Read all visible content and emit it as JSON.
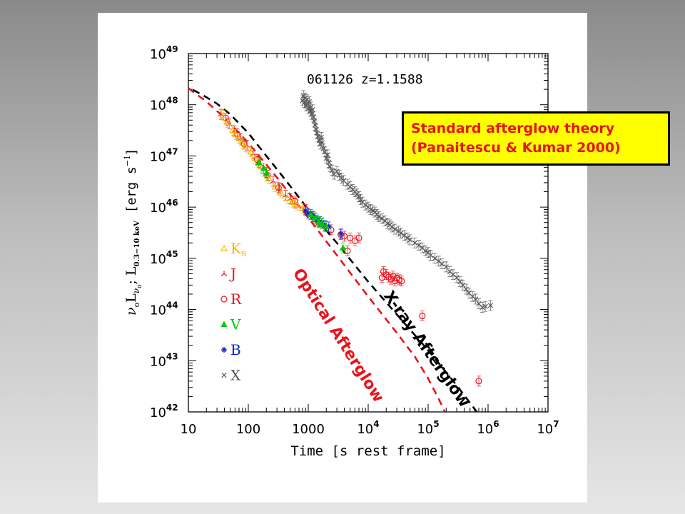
{
  "chart_data": {
    "type": "scatter",
    "title": "061126   z=1.1588",
    "xlabel": "Time [s rest frame]",
    "ylabel_parts": [
      "ν",
      "o",
      "L",
      "ν",
      "o",
      "; ",
      "L",
      "0.3−10 keV",
      "[erg s",
      "−1",
      "]"
    ],
    "x_scale": "log",
    "y_scale": "log",
    "xlim": [
      10,
      10000000
    ],
    "ylim": [
      1e+42,
      1e+49
    ],
    "x_ticks": [
      {
        "value": 10,
        "base": "10",
        "exp": ""
      },
      {
        "value": 100,
        "base": "100",
        "exp": ""
      },
      {
        "value": 1000,
        "base": "1000",
        "exp": ""
      },
      {
        "value": 10000,
        "base": "10",
        "exp": "4"
      },
      {
        "value": 100000,
        "base": "10",
        "exp": "5"
      },
      {
        "value": 1000000,
        "base": "10",
        "exp": "6"
      },
      {
        "value": 10000000,
        "base": "10",
        "exp": "7"
      }
    ],
    "y_ticks": [
      {
        "value": 1e+42,
        "base": "10",
        "exp": "42"
      },
      {
        "value": 1e+43,
        "base": "10",
        "exp": "43"
      },
      {
        "value": 1e+44,
        "base": "10",
        "exp": "44"
      },
      {
        "value": 1e+45,
        "base": "10",
        "exp": "45"
      },
      {
        "value": 1e+46,
        "base": "10",
        "exp": "46"
      },
      {
        "value": 1e+47,
        "base": "10",
        "exp": "47"
      },
      {
        "value": 1e+48,
        "base": "10",
        "exp": "48"
      },
      {
        "value": 1e+49,
        "base": "10",
        "exp": "49"
      }
    ],
    "legend_position": "lower-left",
    "series": [
      {
        "name": "Ks",
        "sub": "s",
        "main": "K",
        "marker": "triangle-open",
        "color": "#f0b400",
        "points": [
          [
            38,
            6.2e+47
          ],
          [
            45,
            4.5e+47
          ],
          [
            55,
            3.2e+47
          ],
          [
            62,
            2.6e+47
          ],
          [
            70,
            2.2e+47
          ],
          [
            80,
            1.8e+47
          ],
          [
            90,
            1.5e+47
          ],
          [
            110,
            1.2e+47
          ],
          [
            130,
            9e+46
          ],
          [
            150,
            7e+46
          ],
          [
            180,
            5e+46
          ],
          [
            220,
            3.6e+46
          ],
          [
            280,
            2.5e+46
          ],
          [
            350,
            1.9e+46
          ],
          [
            450,
            1.5e+46
          ],
          [
            550,
            1.25e+46
          ],
          [
            650,
            1.1e+46
          ],
          [
            800,
            9.5e+45
          ]
        ]
      },
      {
        "name": "J",
        "main": "J",
        "marker": "tri-open",
        "color": "#e8141c",
        "points": [
          [
            35,
            6.5e+47
          ],
          [
            48,
            4.2e+47
          ],
          [
            58,
            3.1e+47
          ],
          [
            75,
            2.2e+47
          ],
          [
            95,
            1.6e+47
          ],
          [
            120,
            1.1e+47
          ],
          [
            160,
            7e+46
          ],
          [
            200,
            4.8e+46
          ],
          [
            260,
            3.2e+46
          ],
          [
            330,
            2.3e+46
          ],
          [
            420,
            1.7e+46
          ],
          [
            500,
            1.45e+46
          ],
          [
            600,
            1.2e+46
          ]
        ]
      },
      {
        "name": "R",
        "main": "R",
        "marker": "circle-open",
        "color": "#e8141c",
        "points": [
          [
            42,
            5.5e+47
          ],
          [
            65,
            2.7e+47
          ],
          [
            85,
            1.7e+47
          ],
          [
            140,
            8.5e+46
          ],
          [
            210,
            4.2e+46
          ],
          [
            320,
            2.4e+46
          ],
          [
            600,
            1.3e+46
          ],
          [
            900,
            9e+45
          ],
          [
            1200,
            6.5e+45
          ],
          [
            1500,
            5e+45
          ],
          [
            1900,
            4.2e+45
          ],
          [
            2400,
            3.6e+45
          ],
          [
            3500,
            2.9e+45
          ],
          [
            4000,
            2.7e+45
          ],
          [
            5000,
            2.5e+45
          ],
          [
            6000,
            2.2e+45
          ],
          [
            7000,
            2.5e+45
          ],
          [
            4500,
            1.4e+45
          ],
          [
            18000,
            5.5e+44
          ],
          [
            20000,
            4.8e+44
          ],
          [
            22000,
            4.3e+44
          ],
          [
            24000,
            3.9e+44
          ],
          [
            26000,
            4.5e+44
          ],
          [
            28000,
            3.6e+44
          ],
          [
            30000,
            4.1e+44
          ],
          [
            33000,
            3.8e+44
          ],
          [
            36000,
            3.6e+44
          ],
          [
            17000,
            4.2e+44
          ],
          [
            80000,
            7.5e+43
          ],
          [
            700000,
            4e+42
          ]
        ]
      },
      {
        "name": "V",
        "main": "V",
        "marker": "triangle-filled",
        "color": "#00c800",
        "points": [
          [
            150,
            7.5e+46
          ],
          [
            180,
            5.8e+46
          ],
          [
            200,
            4.6e+46
          ],
          [
            1100,
            7.2e+45
          ],
          [
            1300,
            6.2e+45
          ],
          [
            1500,
            5.2e+45
          ],
          [
            1700,
            4.8e+45
          ],
          [
            2000,
            4.2e+45
          ],
          [
            3800,
            1.6e+45
          ]
        ]
      },
      {
        "name": "B",
        "main": "B",
        "marker": "star",
        "color": "#1020d0",
        "points": [
          [
            900,
            8.5e+45
          ],
          [
            1000,
            7.6e+45
          ],
          [
            1100,
            7.1e+45
          ],
          [
            1200,
            6.6e+45
          ],
          [
            1300,
            6.1e+45
          ],
          [
            1400,
            5.6e+45
          ],
          [
            1550,
            5.2e+45
          ],
          [
            1700,
            4.9e+45
          ],
          [
            1900,
            4.4e+45
          ],
          [
            2200,
            4.1e+45
          ],
          [
            3500,
            3e+45
          ]
        ]
      },
      {
        "name": "X",
        "main": "X",
        "marker": "x",
        "color": "#5a5a5a",
        "points": [
          [
            800,
            1.2e+48
          ],
          [
            830,
            1.5e+48
          ],
          [
            860,
            1.1e+48
          ],
          [
            890,
            1.35e+48
          ],
          [
            920,
            9.5e+47
          ],
          [
            950,
            1.25e+48
          ],
          [
            980,
            1.05e+48
          ],
          [
            1010,
            8.5e+47
          ],
          [
            1040,
            1.15e+48
          ],
          [
            1070,
            7.5e+47
          ],
          [
            1100,
            9e+47
          ],
          [
            1140,
            6.5e+47
          ],
          [
            1180,
            8e+47
          ],
          [
            1220,
            5.8e+47
          ],
          [
            1260,
            4.8e+47
          ],
          [
            1300,
            4e+47
          ],
          [
            1350,
            3.3e+47
          ],
          [
            1400,
            2.8e+47
          ],
          [
            1450,
            2.4e+47
          ],
          [
            1520,
            2e+47
          ],
          [
            1600,
            1.7e+47
          ],
          [
            1650,
            2.3e+47
          ],
          [
            1700,
            1.8e+47
          ],
          [
            1800,
            1.4e+47
          ],
          [
            1900,
            1.2e+47
          ],
          [
            2000,
            9e+46
          ],
          [
            2100,
            1.05e+47
          ],
          [
            2200,
            7.5e+46
          ],
          [
            2300,
            6.2e+46
          ],
          [
            2500,
            5.2e+46
          ],
          [
            2700,
            4.4e+46
          ],
          [
            3000,
            5e+46
          ],
          [
            3300,
            4.2e+46
          ],
          [
            3600,
            3.7e+46
          ],
          [
            3900,
            3.3e+46
          ],
          [
            4500,
            2.8e+46
          ],
          [
            5000,
            2.5e+46
          ],
          [
            5500,
            2.2e+46
          ],
          [
            6000,
            2e+46
          ],
          [
            6500,
            1.8e+46
          ],
          [
            7000,
            1.6e+46
          ],
          [
            7500,
            1.4e+46
          ],
          [
            8000,
            1.25e+46
          ],
          [
            9000,
            1.1e+46
          ],
          [
            10000,
            1e+46
          ],
          [
            11000,
            9e+45
          ],
          [
            12000,
            8.5e+45
          ],
          [
            13000,
            8e+45
          ],
          [
            14000,
            7.2e+45
          ],
          [
            15000,
            6.5e+45
          ],
          [
            17000,
            6e+45
          ],
          [
            19000,
            5.4e+45
          ],
          [
            21000,
            4.8e+45
          ],
          [
            23000,
            4.5e+45
          ],
          [
            25000,
            4.1e+45
          ],
          [
            28000,
            3.7e+45
          ],
          [
            32000,
            3.4e+45
          ],
          [
            35000,
            3.1e+45
          ],
          [
            40000,
            2.8e+45
          ],
          [
            45000,
            2.5e+45
          ],
          [
            50000,
            2.3e+45
          ],
          [
            60000,
            2e+45
          ],
          [
            70000,
            1.8e+45
          ],
          [
            80000,
            1.6e+45
          ],
          [
            90000,
            1.4e+45
          ],
          [
            100000,
            1.3e+45
          ],
          [
            110000,
            1.15e+45
          ],
          [
            130000,
            1e+45
          ],
          [
            150000,
            8.8e+44
          ],
          [
            170000,
            7.8e+44
          ],
          [
            200000,
            6.8e+44
          ],
          [
            230000,
            5.5e+44
          ],
          [
            260000,
            4.8e+44
          ],
          [
            300000,
            4.2e+44
          ],
          [
            340000,
            3.5e+44
          ],
          [
            380000,
            3e+44
          ],
          [
            430000,
            2.5e+44
          ],
          [
            480000,
            2.1e+44
          ],
          [
            550000,
            1.8e+44
          ],
          [
            620000,
            1.6e+44
          ],
          [
            700000,
            1.3e+44
          ],
          [
            800000,
            1.1e+44
          ],
          [
            900000,
            1.15e+44
          ],
          [
            1100000,
            1.2e+44
          ]
        ]
      }
    ],
    "model_lines": [
      {
        "name": "X-ray Afterglow",
        "color": "#000000",
        "points": [
          [
            12,
            1.95e+48
          ],
          [
            20,
            1.4e+48
          ],
          [
            30,
            1.05e+48
          ],
          [
            50,
            6.5e+47
          ],
          [
            100,
            2.8e+47
          ],
          [
            200,
            1e+47
          ],
          [
            400,
            3.6e+46
          ],
          [
            1000,
            9e+45
          ],
          [
            3000,
            2e+45
          ],
          [
            10000,
            3.5e+44
          ],
          [
            30000,
            8e+43
          ],
          [
            100000,
            1.6e+43
          ],
          [
            300000,
            3.3e+42
          ],
          [
            500000,
            1.5e+42
          ],
          [
            650000,
            1e+42
          ]
        ]
      },
      {
        "name": "Optical Afterglow",
        "color": "#e8141c",
        "points": [
          [
            10,
            2.1e+48
          ],
          [
            20,
            1.15e+48
          ],
          [
            40,
            5.6e+47
          ],
          [
            100,
            1.8e+47
          ],
          [
            300,
            3.8e+46
          ],
          [
            1000,
            6.2e+45
          ],
          [
            3000,
            1.15e+45
          ],
          [
            10000,
            1.8e+44
          ],
          [
            30000,
            3.5e+43
          ],
          [
            60000,
            1.2e+43
          ],
          [
            100000,
            4.5e+42
          ],
          [
            150000,
            1.8e+42
          ],
          [
            190000,
            1e+42
          ]
        ]
      }
    ],
    "annotations": [
      {
        "text": "Optical Afterglow",
        "color": "#e8141c"
      },
      {
        "text": "X-ray Afterglow",
        "color": "#000000"
      }
    ]
  },
  "callout": {
    "line1": "Standard afterglow theory",
    "line2": "(Panaitescu & Kumar 2000)",
    "color": "#e8141c",
    "background": "#ffff00"
  }
}
